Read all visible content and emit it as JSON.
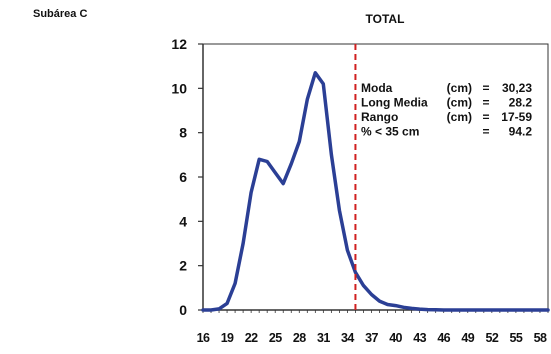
{
  "subarea_label": "Subárea C",
  "chart_data": {
    "type": "line",
    "title": "TOTAL",
    "xlabel": "",
    "ylabel": "",
    "ylim": [
      0,
      12
    ],
    "yticks": [
      0,
      2,
      4,
      6,
      8,
      10,
      12
    ],
    "xlim": [
      16,
      59
    ],
    "xticks": [
      16,
      19,
      22,
      25,
      28,
      31,
      34,
      37,
      40,
      43,
      46,
      49,
      52,
      55,
      58
    ],
    "grid": false,
    "series": [
      {
        "color": "#2b3f95",
        "x": [
          16,
          17,
          18,
          19,
          20,
          21,
          22,
          23,
          24,
          25,
          26,
          27,
          28,
          29,
          30,
          31,
          32,
          33,
          34,
          35,
          36,
          37,
          38,
          39,
          40,
          41,
          42,
          43,
          44,
          45,
          46,
          47,
          48,
          49,
          50,
          51,
          52,
          53,
          54,
          55,
          56,
          57,
          58,
          59
        ],
        "y": [
          0,
          0,
          0.05,
          0.3,
          1.2,
          3.0,
          5.3,
          6.8,
          6.7,
          6.2,
          5.7,
          6.6,
          7.6,
          9.5,
          10.7,
          10.2,
          7.0,
          4.5,
          2.7,
          1.7,
          1.1,
          0.7,
          0.4,
          0.25,
          0.2,
          0.12,
          0.07,
          0.04,
          0.02,
          0.01,
          0,
          0,
          0,
          0,
          0,
          0,
          0,
          0,
          0,
          0,
          0,
          0,
          0,
          0
        ]
      }
    ],
    "reference_line": {
      "x": 35,
      "color": "#d02020",
      "style": "dashed"
    },
    "stats": [
      {
        "label": "Moda",
        "unit": "(cm)",
        "eq": "=",
        "value": "30,23"
      },
      {
        "label": "Long Media",
        "unit": "(cm)",
        "eq": "=",
        "value": "28.2"
      },
      {
        "label": "Rango",
        "unit": "(cm)",
        "eq": "=",
        "value": "17-59"
      },
      {
        "label": "% < 35 cm",
        "unit": "",
        "eq": "=",
        "value": "94.2"
      }
    ]
  }
}
